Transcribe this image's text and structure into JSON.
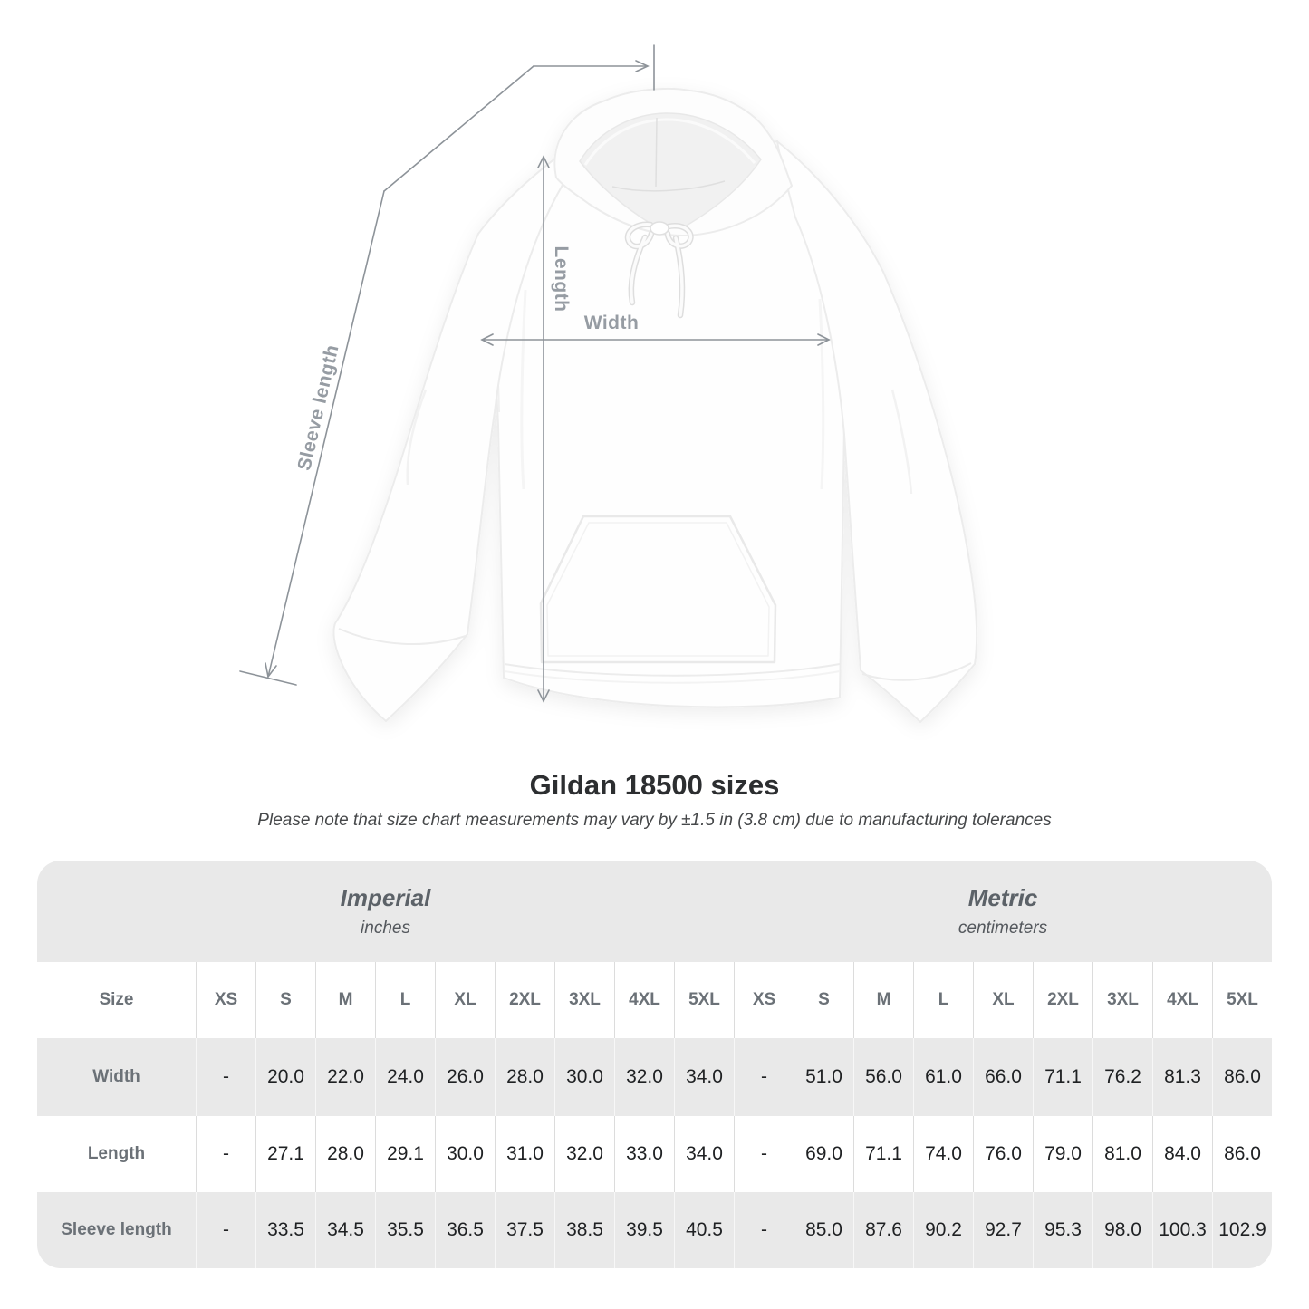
{
  "diagram": {
    "labels": {
      "sleeve_length": "Sleeve length",
      "length": "Length",
      "width": "Width"
    }
  },
  "title": "Gildan 18500 sizes",
  "subtitle": "Please note that size chart measurements may vary by ±1.5 in (3.8 cm) due to manufacturing tolerances",
  "table": {
    "sections": [
      {
        "label": "Imperial",
        "sublabel": "inches"
      },
      {
        "label": "Metric",
        "sublabel": "centimeters"
      }
    ],
    "size_header": "Size",
    "sizes": [
      "XS",
      "S",
      "M",
      "L",
      "XL",
      "2XL",
      "3XL",
      "4XL",
      "5XL"
    ],
    "rows": [
      {
        "label": "Width",
        "imperial": [
          "-",
          "20.0",
          "22.0",
          "24.0",
          "26.0",
          "28.0",
          "30.0",
          "32.0",
          "34.0"
        ],
        "metric": [
          "-",
          "51.0",
          "56.0",
          "61.0",
          "66.0",
          "71.1",
          "76.2",
          "81.3",
          "86.0"
        ]
      },
      {
        "label": "Length",
        "imperial": [
          "-",
          "27.1",
          "28.0",
          "29.1",
          "30.0",
          "31.0",
          "32.0",
          "33.0",
          "34.0"
        ],
        "metric": [
          "-",
          "69.0",
          "71.1",
          "74.0",
          "76.0",
          "79.0",
          "81.0",
          "84.0",
          "86.0"
        ]
      },
      {
        "label": "Sleeve length",
        "imperial": [
          "-",
          "33.5",
          "34.5",
          "35.5",
          "36.5",
          "37.5",
          "38.5",
          "39.5",
          "40.5"
        ],
        "metric": [
          "-",
          "85.0",
          "87.6",
          "90.2",
          "92.7",
          "95.3",
          "98.0",
          "100.3",
          "102.9"
        ]
      }
    ]
  }
}
